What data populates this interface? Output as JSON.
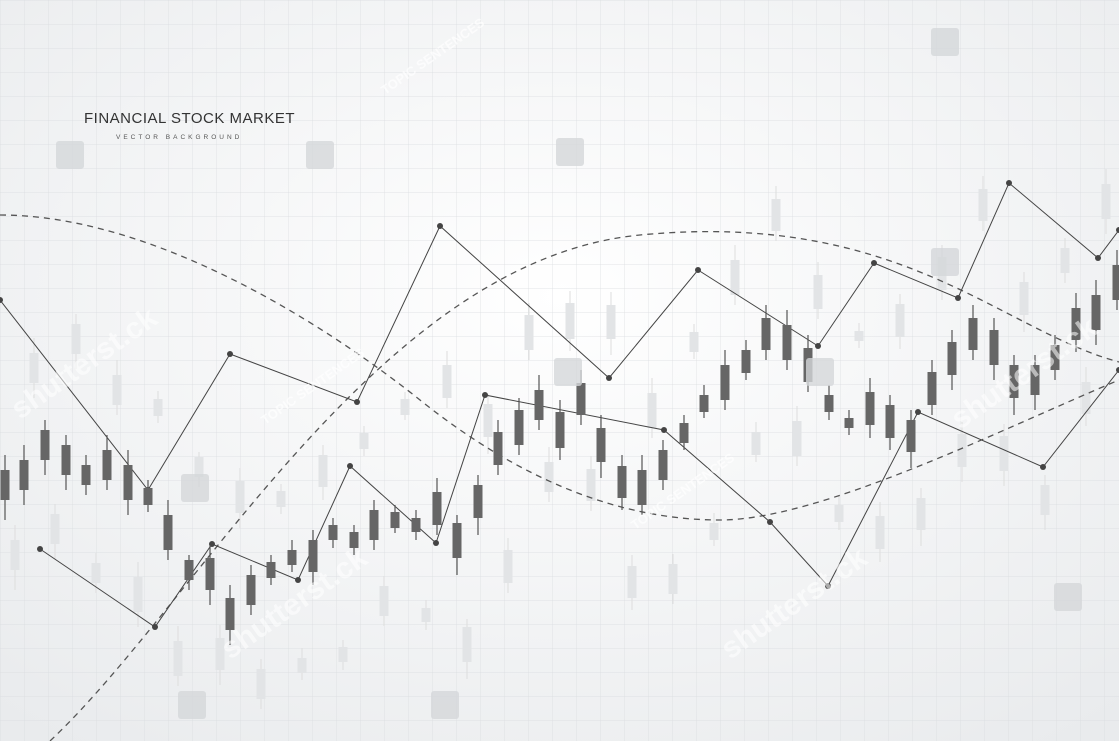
{
  "header": {
    "title": "FINANCIAL STOCK MARKET",
    "subtitle": "VECTOR BACKGROUND"
  },
  "watermarks": [
    "shutterst.ck",
    "TOPIC SENTENCES"
  ]
}
